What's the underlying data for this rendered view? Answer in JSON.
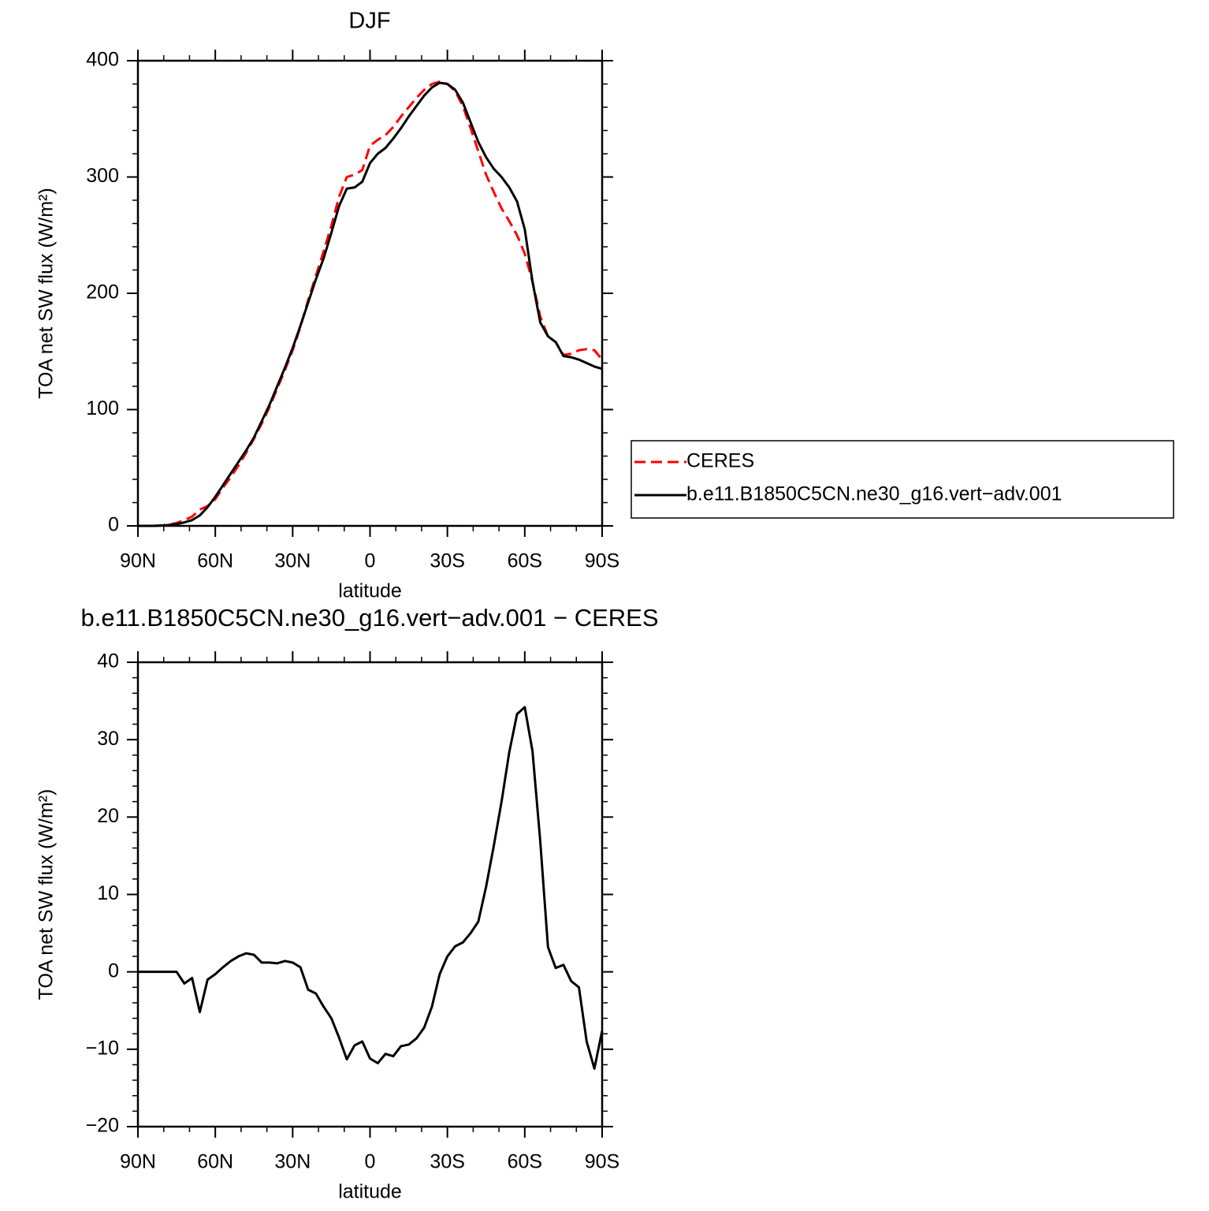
{
  "chart_data": [
    {
      "type": "line",
      "title": "DJF",
      "xlabel": "latitude",
      "ylabel": "TOA net SW flux (W/m²)",
      "x": [
        90,
        87,
        84,
        81,
        78,
        75,
        72,
        69,
        66,
        63,
        60,
        57,
        54,
        51,
        48,
        45,
        42,
        39,
        36,
        33,
        30,
        27,
        24,
        21,
        18,
        15,
        12,
        9,
        6,
        3,
        0,
        -3,
        -6,
        -9,
        -12,
        -15,
        -18,
        -21,
        -24,
        -27,
        -30,
        -33,
        -36,
        -39,
        -42,
        -45,
        -48,
        -51,
        -54,
        -57,
        -60,
        -63,
        -66,
        -69,
        -72,
        -75,
        -78,
        -81,
        -84,
        -87,
        -90
      ],
      "series": [
        {
          "name": "CERES",
          "color": "#ff0000",
          "dashed": true,
          "values": [
            0,
            0,
            0,
            0.3,
            1,
            2.5,
            5,
            8,
            14,
            17,
            23,
            33,
            42,
            52,
            63,
            75,
            88,
            102,
            118,
            134,
            151,
            171,
            194,
            215,
            236,
            258,
            283,
            300,
            302,
            306,
            327,
            332,
            336,
            343,
            352,
            360,
            368,
            375,
            380,
            382,
            380,
            374,
            361,
            342,
            322,
            302,
            287,
            273,
            262,
            250,
            234,
            210,
            180,
            163,
            158,
            147,
            148,
            151,
            152,
            151,
            143
          ]
        },
        {
          "name": "b.e11.B1850C5CN.ne30_g16.vert−adv.001",
          "color": "#000000",
          "dashed": false,
          "values": [
            0,
            0,
            0,
            0.3,
            0.8,
            1.5,
            3,
            5,
            9,
            16,
            25,
            35,
            45,
            55,
            65,
            76,
            90,
            104,
            120,
            136,
            153,
            172,
            192,
            212,
            230,
            252,
            275,
            290,
            291,
            296,
            312,
            320,
            325,
            333,
            342,
            352,
            361,
            370,
            377,
            381,
            380,
            375,
            364,
            347,
            330,
            317,
            307,
            300,
            291,
            279,
            255,
            210,
            175,
            163,
            158,
            146,
            145,
            143,
            140,
            137,
            135
          ]
        }
      ],
      "xlim": [
        90,
        -90
      ],
      "xticks": [
        {
          "value": 90,
          "label": "90N"
        },
        {
          "value": 60,
          "label": "60N"
        },
        {
          "value": 30,
          "label": "30N"
        },
        0,
        {
          "value": -30,
          "label": "30S"
        },
        {
          "value": -60,
          "label": "60S"
        },
        {
          "value": -90,
          "label": "90S"
        }
      ],
      "ylim": [
        0,
        400
      ],
      "yticks": [
        0,
        100,
        200,
        300,
        400
      ],
      "legend": "right"
    },
    {
      "type": "line",
      "title": "b.e11.B1850C5CN.ne30_g16.vert−adv.001 − CERES",
      "xlabel": "latitude",
      "ylabel": "TOA net SW flux (W/m²)",
      "x": [
        90,
        87,
        84,
        81,
        78,
        75,
        72,
        69,
        66,
        63,
        60,
        57,
        54,
        51,
        48,
        45,
        42,
        39,
        36,
        33,
        30,
        27,
        24,
        21,
        18,
        15,
        12,
        9,
        6,
        3,
        0,
        -3,
        -6,
        -9,
        -12,
        -15,
        -18,
        -21,
        -24,
        -27,
        -30,
        -33,
        -36,
        -39,
        -42,
        -45,
        -48,
        -51,
        -54,
        -57,
        -60,
        -63,
        -66,
        -69,
        -72,
        -75,
        -78,
        -81,
        -84,
        -87,
        -90
      ],
      "series": [
        {
          "color": "#000000",
          "dashed": false,
          "values": [
            0,
            0,
            0,
            0,
            0,
            0,
            -1.5,
            -0.8,
            -5.2,
            -1,
            -0.3,
            0.6,
            1.4,
            2,
            2.4,
            2.2,
            1.2,
            1.2,
            1.1,
            1.4,
            1.2,
            0.6,
            -2.3,
            -2.8,
            -4.5,
            -6,
            -8.5,
            -11.3,
            -9.5,
            -9,
            -11.2,
            -11.8,
            -10.6,
            -10.9,
            -9.6,
            -9.4,
            -8.6,
            -7.2,
            -4.5,
            -0.3,
            2,
            3.3,
            3.8,
            5,
            6.5,
            11,
            16.3,
            22,
            28.4,
            33.3,
            34.2,
            28.5,
            16.9,
            3.2,
            0.5,
            0.9,
            -1.2,
            -2,
            -9,
            -12.5,
            -7.6
          ]
        }
      ],
      "xlim": [
        90,
        -90
      ],
      "xticks": [
        {
          "value": 90,
          "label": "90N"
        },
        {
          "value": 60,
          "label": "60N"
        },
        {
          "value": 30,
          "label": "30N"
        },
        0,
        {
          "value": -30,
          "label": "30S"
        },
        {
          "value": -60,
          "label": "60S"
        },
        {
          "value": -90,
          "label": "90S"
        }
      ],
      "ylim": [
        -20,
        40
      ],
      "yticks": [
        {
          "value": -20,
          "label": "−20"
        },
        {
          "value": -10,
          "label": "−10"
        },
        0,
        10,
        20,
        30,
        40
      ]
    }
  ]
}
